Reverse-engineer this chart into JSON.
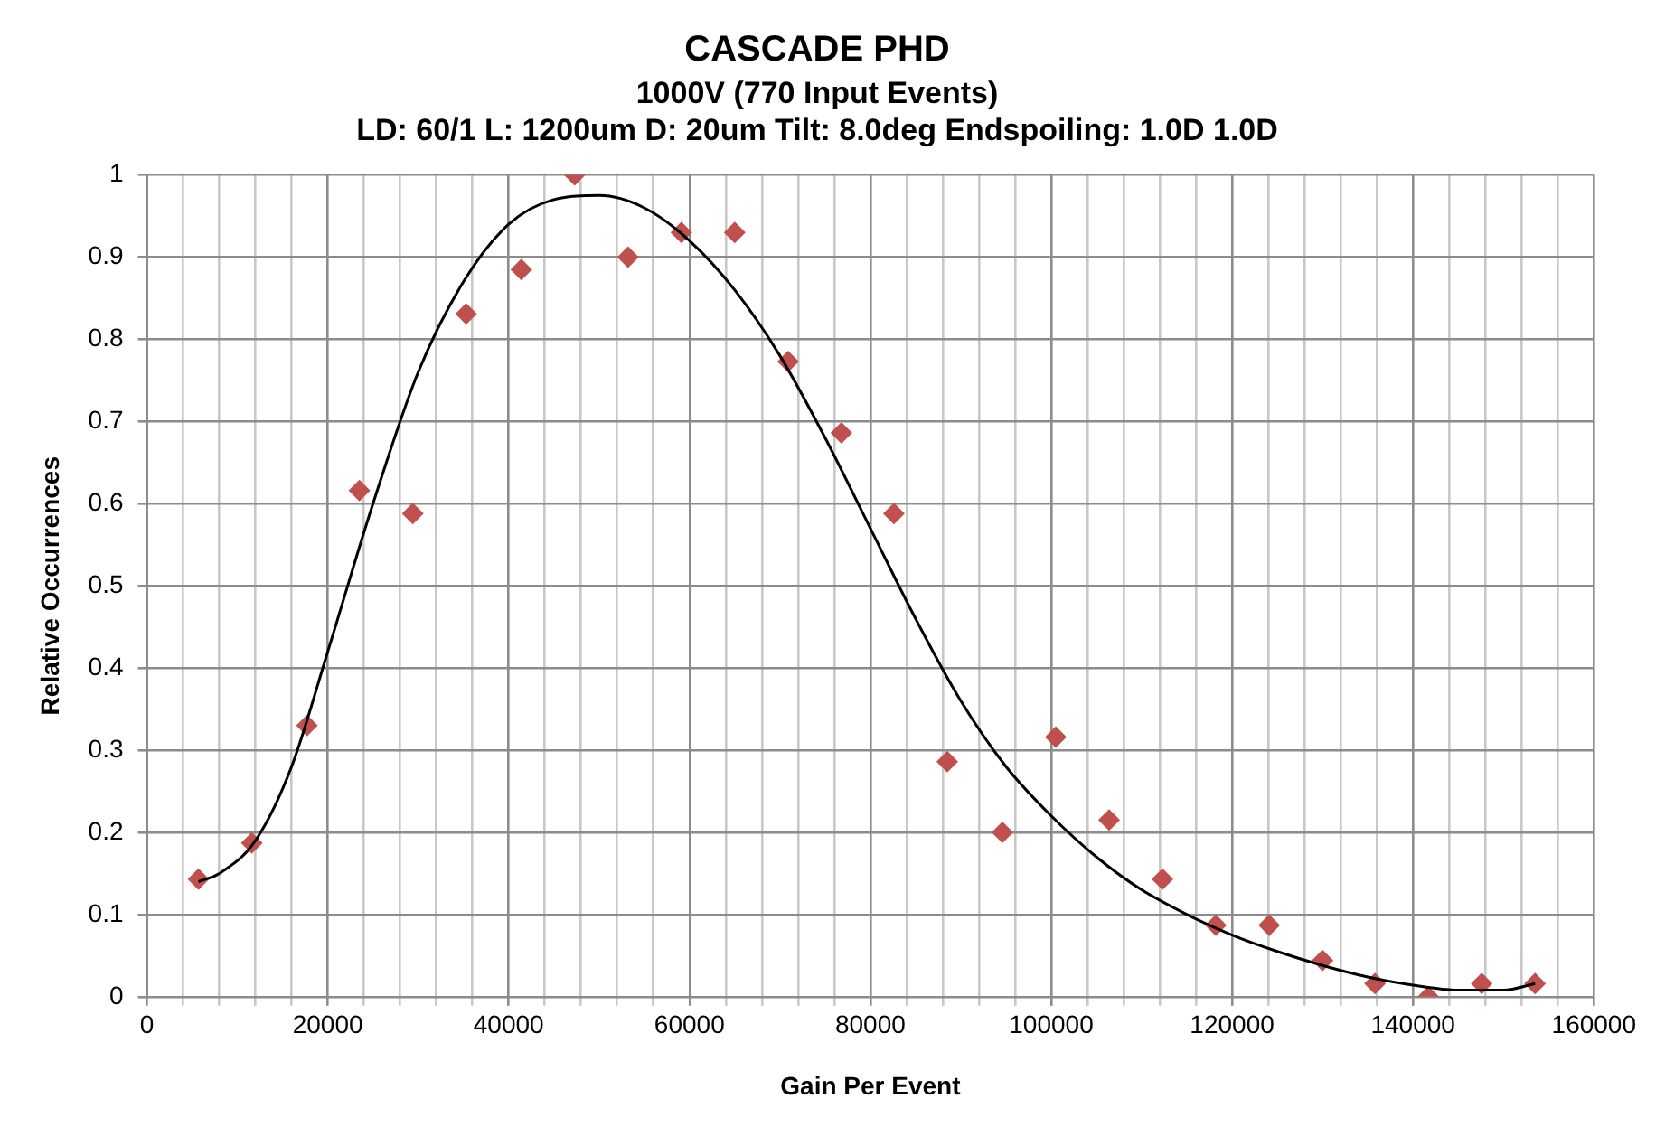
{
  "chart_data": {
    "type": "scatter",
    "title": "CASCADE PHD",
    "subtitle": [
      "1000V (770 Input Events)",
      "LD: 60/1 L: 1200um D: 20um Tilt: 8.0deg Endspoiling: 1.0D 1.0D"
    ],
    "xlabel": "Gain Per Event",
    "ylabel": "Relative Occurrences",
    "x": [
      5700,
      11600,
      17700,
      23500,
      29400,
      35300,
      41400,
      47300,
      53200,
      59100,
      65000,
      70900,
      76800,
      82600,
      88500,
      94600,
      100500,
      106400,
      112300,
      118200,
      124100,
      130000,
      135800,
      141700,
      147600,
      153500
    ],
    "series": [
      {
        "type": "scatter",
        "color": "#c0504d",
        "marker": "diamond",
        "values": [
          0.143,
          0.187,
          0.33,
          0.616,
          0.588,
          0.831,
          0.885,
          1.0,
          0.9,
          0.93,
          0.93,
          0.773,
          0.686,
          0.588,
          0.286,
          0.2,
          0.316,
          0.215,
          0.143,
          0.087,
          0.087,
          0.044,
          0.016,
          0,
          0.016,
          0.016
        ]
      },
      {
        "type": "line",
        "color": "#000000",
        "marker": "none",
        "x": [
          5700,
          8000,
          12000,
          16000,
          20000,
          25000,
          30000,
          35000,
          40000,
          45000,
          50000,
          55000,
          60000,
          65000,
          70000,
          75000,
          80000,
          85000,
          90000,
          95000,
          100000,
          105000,
          110000,
          115000,
          120000,
          125000,
          130000,
          135000,
          140000,
          145000,
          150000,
          153500
        ],
        "values": [
          0.14,
          0.15,
          0.19,
          0.28,
          0.42,
          0.6,
          0.76,
          0.87,
          0.94,
          0.97,
          0.975,
          0.96,
          0.92,
          0.86,
          0.78,
          0.68,
          0.57,
          0.46,
          0.36,
          0.28,
          0.22,
          0.17,
          0.13,
          0.1,
          0.075,
          0.055,
          0.038,
          0.024,
          0.014,
          0.008,
          0.008,
          0.016
        ]
      }
    ],
    "xlim": [
      0,
      160000
    ],
    "xticks": [
      0,
      {
        "value": 4000,
        "label": null
      },
      {
        "value": 8000,
        "label": null
      },
      {
        "value": 12000,
        "label": null
      },
      {
        "value": 16000,
        "label": null
      },
      20000,
      {
        "value": 24000,
        "label": null
      },
      {
        "value": 28000,
        "label": null
      },
      {
        "value": 32000,
        "label": null
      },
      {
        "value": 36000,
        "label": null
      },
      40000,
      {
        "value": 44000,
        "label": null
      },
      {
        "value": 48000,
        "label": null
      },
      {
        "value": 52000,
        "label": null
      },
      {
        "value": 56000,
        "label": null
      },
      60000,
      {
        "value": 64000,
        "label": null
      },
      {
        "value": 68000,
        "label": null
      },
      {
        "value": 72000,
        "label": null
      },
      {
        "value": 76000,
        "label": null
      },
      80000,
      {
        "value": 84000,
        "label": null
      },
      {
        "value": 88000,
        "label": null
      },
      {
        "value": 92000,
        "label": null
      },
      {
        "value": 96000,
        "label": null
      },
      100000,
      {
        "value": 104000,
        "label": null
      },
      {
        "value": 108000,
        "label": null
      },
      {
        "value": 112000,
        "label": null
      },
      {
        "value": 116000,
        "label": null
      },
      120000,
      {
        "value": 124000,
        "label": null
      },
      {
        "value": 128000,
        "label": null
      },
      {
        "value": 132000,
        "label": null
      },
      {
        "value": 136000,
        "label": null
      },
      140000,
      {
        "value": 144000,
        "label": null
      },
      {
        "value": 148000,
        "label": null
      },
      {
        "value": 152000,
        "label": null
      },
      {
        "value": 156000,
        "label": null
      },
      160000
    ],
    "ylim": [
      0,
      1
    ],
    "yticks": [
      0,
      0.1,
      0.2,
      0.3,
      0.4,
      0.5,
      0.6,
      0.7,
      0.8,
      0.9,
      1
    ],
    "grid": true,
    "legend": false
  }
}
